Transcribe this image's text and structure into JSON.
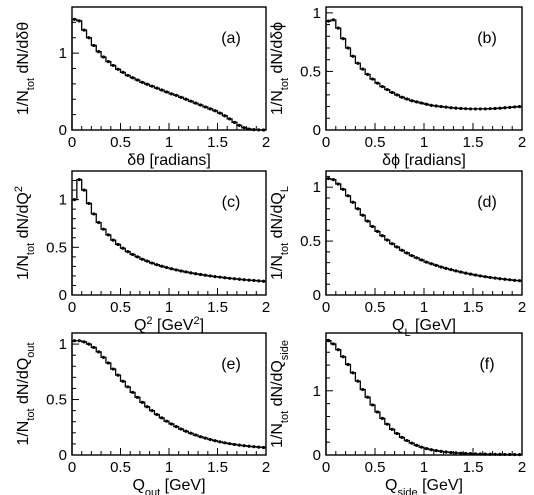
{
  "chart_data": [
    {
      "type": "line",
      "panel_label": "(a)",
      "xlabel": "δθ [radians]",
      "ylabel": "1/N_tot dN/dδθ",
      "xlim": [
        0,
        2
      ],
      "ylim": [
        0,
        1.6
      ],
      "xticks": [
        0,
        0.5,
        1,
        1.5,
        2
      ],
      "yticks": [
        0,
        1
      ],
      "grid": false,
      "series": [
        {
          "x": [
            0,
            0.05,
            0.1,
            0.15,
            0.2,
            0.25,
            0.3,
            0.35,
            0.4,
            0.45,
            0.5,
            0.55,
            0.6,
            0.65,
            0.7,
            0.75,
            0.8,
            0.85,
            0.9,
            0.95,
            1.0,
            1.05,
            1.1,
            1.15,
            1.2,
            1.25,
            1.3,
            1.35,
            1.4,
            1.45,
            1.5,
            1.55,
            1.6,
            1.65,
            1.7,
            1.75,
            1.8,
            1.85,
            1.9,
            1.95
          ],
          "y": [
            1.44,
            1.42,
            1.3,
            1.2,
            1.1,
            1.02,
            0.95,
            0.89,
            0.84,
            0.79,
            0.75,
            0.71,
            0.68,
            0.65,
            0.62,
            0.595,
            0.57,
            0.545,
            0.52,
            0.495,
            0.47,
            0.45,
            0.425,
            0.4,
            0.375,
            0.35,
            0.325,
            0.3,
            0.275,
            0.25,
            0.22,
            0.185,
            0.145,
            0.1,
            0.06,
            0.03,
            0.012,
            0.005,
            0.002,
            0.0
          ]
        }
      ]
    },
    {
      "type": "line",
      "panel_label": "(b)",
      "xlabel": "δϕ [radians]",
      "ylabel": "1/N_tot dN/dδϕ",
      "xlim": [
        0,
        2
      ],
      "ylim": [
        0,
        1.05
      ],
      "xticks": [
        0,
        0.5,
        1,
        1.5,
        2
      ],
      "yticks": [
        0,
        0.5,
        1
      ],
      "grid": false,
      "series": [
        {
          "x": [
            0,
            0.05,
            0.1,
            0.15,
            0.2,
            0.25,
            0.3,
            0.35,
            0.4,
            0.45,
            0.5,
            0.55,
            0.6,
            0.65,
            0.7,
            0.75,
            0.8,
            0.85,
            0.9,
            0.95,
            1.0,
            1.05,
            1.1,
            1.15,
            1.2,
            1.25,
            1.3,
            1.35,
            1.4,
            1.45,
            1.5,
            1.55,
            1.6,
            1.65,
            1.7,
            1.75,
            1.8,
            1.85,
            1.9,
            1.95
          ],
          "y": [
            0.93,
            0.94,
            0.87,
            0.78,
            0.7,
            0.63,
            0.57,
            0.52,
            0.475,
            0.435,
            0.4,
            0.37,
            0.345,
            0.32,
            0.3,
            0.28,
            0.265,
            0.25,
            0.24,
            0.23,
            0.22,
            0.21,
            0.205,
            0.2,
            0.195,
            0.19,
            0.187,
            0.184,
            0.182,
            0.18,
            0.18,
            0.18,
            0.18,
            0.182,
            0.184,
            0.186,
            0.19,
            0.193,
            0.197,
            0.2
          ]
        }
      ]
    },
    {
      "type": "line",
      "panel_label": "(c)",
      "xlabel": "Q² [GeV²]",
      "ylabel": "1/N_tot dN/dQ²",
      "xlim": [
        0,
        2
      ],
      "ylim": [
        0,
        1.3
      ],
      "xticks": [
        0,
        0.5,
        1,
        1.5,
        2
      ],
      "yticks": [
        0,
        0.5,
        1
      ],
      "grid": false,
      "series": [
        {
          "x": [
            0,
            0.05,
            0.1,
            0.15,
            0.2,
            0.25,
            0.3,
            0.35,
            0.4,
            0.45,
            0.5,
            0.55,
            0.6,
            0.65,
            0.7,
            0.75,
            0.8,
            0.85,
            0.9,
            0.95,
            1.0,
            1.05,
            1.1,
            1.15,
            1.2,
            1.25,
            1.3,
            1.35,
            1.4,
            1.45,
            1.5,
            1.55,
            1.6,
            1.65,
            1.7,
            1.75,
            1.8,
            1.85,
            1.9,
            1.95
          ],
          "y": [
            1.0,
            1.21,
            1.1,
            0.96,
            0.85,
            0.76,
            0.69,
            0.63,
            0.575,
            0.53,
            0.49,
            0.455,
            0.425,
            0.4,
            0.375,
            0.355,
            0.335,
            0.318,
            0.302,
            0.288,
            0.275,
            0.263,
            0.252,
            0.242,
            0.232,
            0.223,
            0.215,
            0.207,
            0.2,
            0.193,
            0.187,
            0.181,
            0.175,
            0.17,
            0.165,
            0.16,
            0.156,
            0.152,
            0.148,
            0.144
          ]
        }
      ]
    },
    {
      "type": "line",
      "panel_label": "(d)",
      "xlabel": "Q_L [GeV]",
      "ylabel": "1/N_tot dN/dQ_L",
      "xlim": [
        0,
        2
      ],
      "ylim": [
        0,
        1.15
      ],
      "xticks": [
        0,
        0.5,
        1,
        1.5,
        2
      ],
      "yticks": [
        0,
        0.5,
        1
      ],
      "grid": false,
      "series": [
        {
          "x": [
            0,
            0.05,
            0.1,
            0.15,
            0.2,
            0.25,
            0.3,
            0.35,
            0.4,
            0.45,
            0.5,
            0.55,
            0.6,
            0.65,
            0.7,
            0.75,
            0.8,
            0.85,
            0.9,
            0.95,
            1.0,
            1.05,
            1.1,
            1.15,
            1.2,
            1.25,
            1.3,
            1.35,
            1.4,
            1.45,
            1.5,
            1.55,
            1.6,
            1.65,
            1.7,
            1.75,
            1.8,
            1.85,
            1.9,
            1.95
          ],
          "y": [
            1.08,
            1.07,
            1.03,
            0.98,
            0.92,
            0.86,
            0.8,
            0.74,
            0.685,
            0.635,
            0.59,
            0.55,
            0.51,
            0.475,
            0.445,
            0.415,
            0.39,
            0.365,
            0.345,
            0.325,
            0.305,
            0.29,
            0.275,
            0.26,
            0.247,
            0.235,
            0.224,
            0.213,
            0.203,
            0.194,
            0.185,
            0.177,
            0.17,
            0.163,
            0.157,
            0.151,
            0.146,
            0.141,
            0.136,
            0.132
          ]
        }
      ]
    },
    {
      "type": "line",
      "panel_label": "(e)",
      "xlabel": "Q_out [GeV]",
      "ylabel": "1/N_tot dN/dQ_out",
      "xlim": [
        0,
        2
      ],
      "ylim": [
        0,
        1.1
      ],
      "xticks": [
        0,
        0.5,
        1,
        1.5,
        2
      ],
      "yticks": [
        0,
        0.5,
        1
      ],
      "grid": false,
      "series": [
        {
          "x": [
            0,
            0.05,
            0.1,
            0.15,
            0.2,
            0.25,
            0.3,
            0.35,
            0.4,
            0.45,
            0.5,
            0.55,
            0.6,
            0.65,
            0.7,
            0.75,
            0.8,
            0.85,
            0.9,
            0.95,
            1.0,
            1.05,
            1.1,
            1.15,
            1.2,
            1.25,
            1.3,
            1.35,
            1.4,
            1.45,
            1.5,
            1.55,
            1.6,
            1.65,
            1.7,
            1.75,
            1.8,
            1.85,
            1.9,
            1.95
          ],
          "y": [
            1.03,
            1.03,
            1.02,
            1.0,
            0.97,
            0.93,
            0.88,
            0.83,
            0.775,
            0.72,
            0.665,
            0.615,
            0.565,
            0.52,
            0.475,
            0.435,
            0.4,
            0.365,
            0.335,
            0.305,
            0.28,
            0.256,
            0.234,
            0.214,
            0.196,
            0.18,
            0.165,
            0.152,
            0.14,
            0.129,
            0.119,
            0.11,
            0.102,
            0.095,
            0.089,
            0.084,
            0.079,
            0.075,
            0.071,
            0.068
          ]
        }
      ]
    },
    {
      "type": "line",
      "panel_label": "(f)",
      "xlabel": "Q_side [GeV]",
      "ylabel": "1/N_tot dN/dQ_side",
      "xlim": [
        0,
        2
      ],
      "ylim": [
        0,
        1.9
      ],
      "xticks": [
        0,
        0.5,
        1,
        1.5,
        2
      ],
      "yticks": [
        0,
        1
      ],
      "grid": false,
      "series": [
        {
          "x": [
            0,
            0.05,
            0.1,
            0.15,
            0.2,
            0.25,
            0.3,
            0.35,
            0.4,
            0.45,
            0.5,
            0.55,
            0.6,
            0.65,
            0.7,
            0.75,
            0.8,
            0.85,
            0.9,
            0.95,
            1.0,
            1.05,
            1.1,
            1.15,
            1.2,
            1.25,
            1.3,
            1.35,
            1.4,
            1.45,
            1.5,
            1.55,
            1.6,
            1.65,
            1.7,
            1.75,
            1.8,
            1.85,
            1.9,
            1.95
          ],
          "y": [
            1.78,
            1.73,
            1.64,
            1.53,
            1.41,
            1.28,
            1.15,
            1.02,
            0.9,
            0.78,
            0.67,
            0.57,
            0.48,
            0.4,
            0.335,
            0.275,
            0.225,
            0.185,
            0.15,
            0.122,
            0.1,
            0.082,
            0.068,
            0.056,
            0.047,
            0.039,
            0.033,
            0.028,
            0.024,
            0.021,
            0.018,
            0.016,
            0.014,
            0.012,
            0.011,
            0.01,
            0.009,
            0.008,
            0.007,
            0.006
          ]
        }
      ]
    }
  ]
}
